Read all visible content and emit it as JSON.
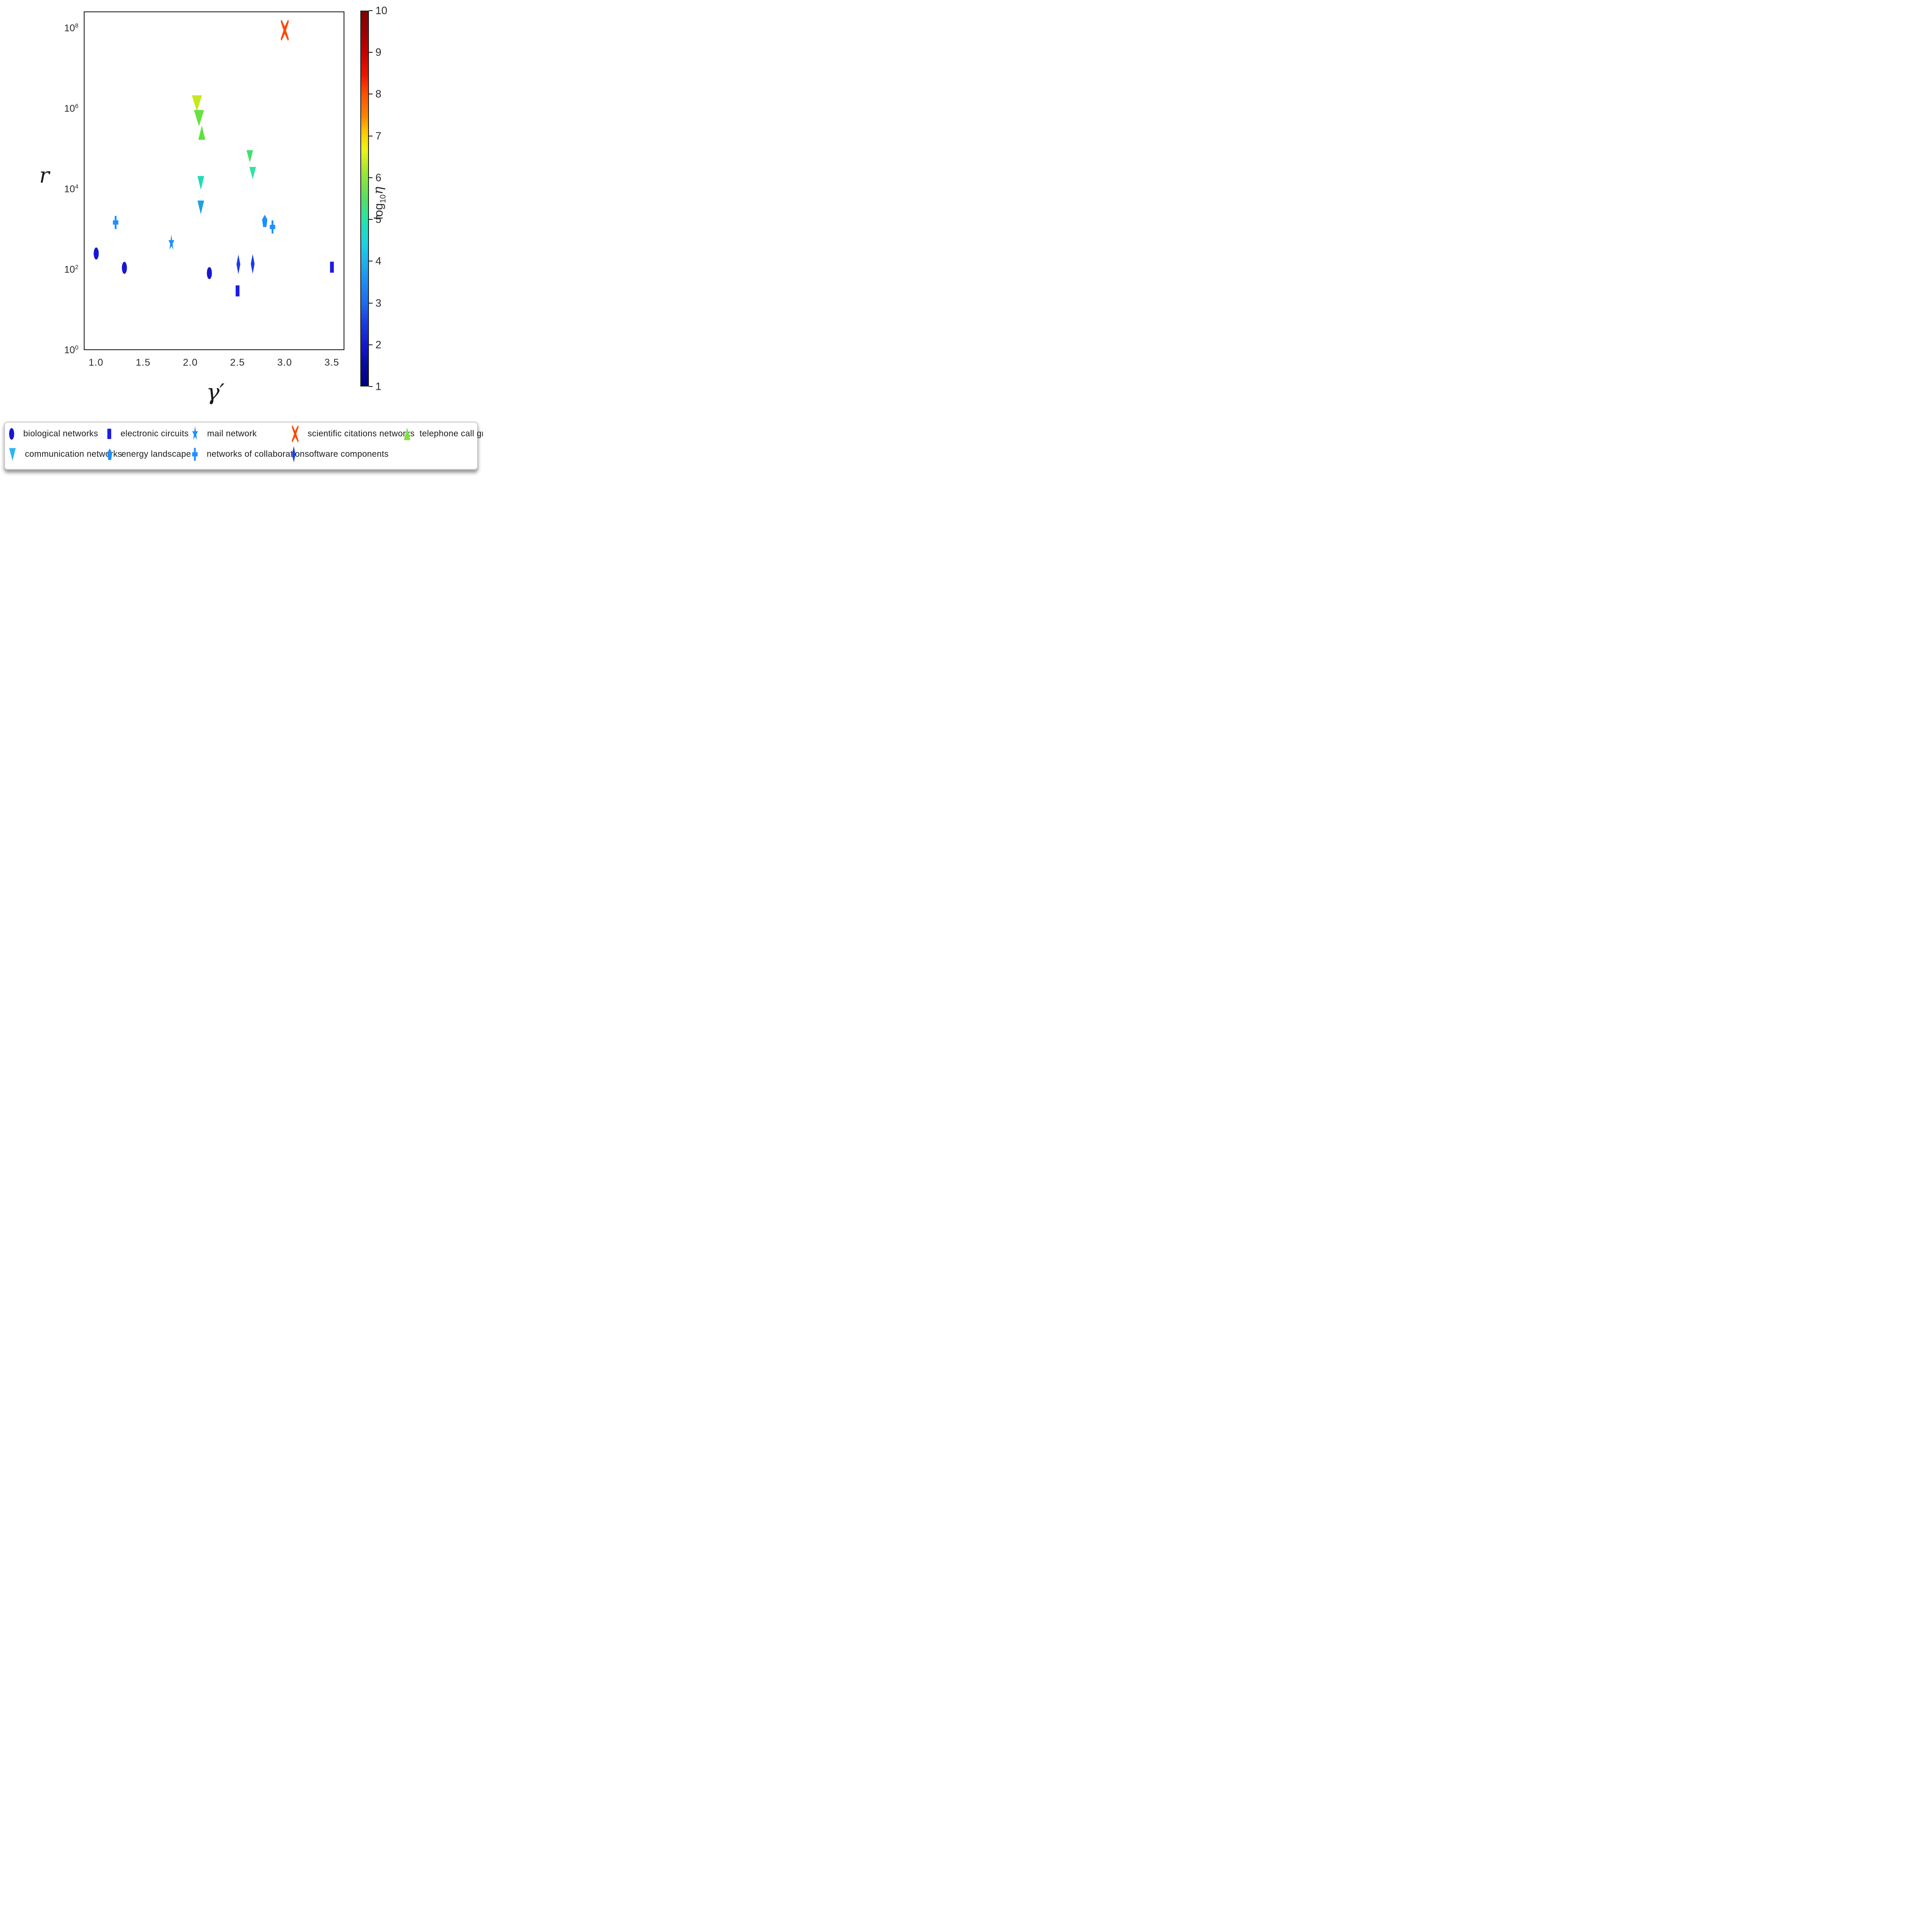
{
  "figure": {
    "background": "#ffffff"
  },
  "axes": {
    "xlabel": "γ′",
    "ylabel": "r",
    "x_ticks": [
      "1.0",
      "1.5",
      "2.0",
      "2.5",
      "3.0",
      "3.5"
    ],
    "y_tick_base": "10",
    "y_tick_exponents": [
      8,
      6,
      4,
      2,
      0
    ]
  },
  "colorbar": {
    "label_prefix": "log",
    "label_sub": "10",
    "label_symbol": "η",
    "ticks": [
      10,
      9,
      8,
      7,
      6,
      5,
      4,
      3,
      2,
      1
    ],
    "top_color": "#7f0000",
    "bottom_color": "#00007f"
  },
  "chart_data": {
    "type": "scatter",
    "xlabel": "γ′",
    "ylabel": "r",
    "x_range": [
      0.87,
      3.63
    ],
    "y_scale": "log",
    "y_range_exponents": [
      0,
      8.4
    ],
    "grid": false,
    "colorbar_label": "log10 η",
    "colorbar_range": [
      1,
      10
    ],
    "series": [
      {
        "name": "biological networks",
        "marker": "circle",
        "color": "#1717d2",
        "log10_eta": 2,
        "w": 13,
        "h": 31,
        "points": [
          {
            "x": 1.0,
            "y": 250
          },
          {
            "x": 1.3,
            "y": 110
          },
          {
            "x": 2.2,
            "y": 82
          }
        ]
      },
      {
        "name": "electronic circuits",
        "marker": "square",
        "color": "#1c1ce4",
        "log10_eta": 2,
        "w": 11,
        "h": 30,
        "points": [
          {
            "x": 2.5,
            "y": 30
          },
          {
            "x": 3.5,
            "y": 115
          }
        ]
      },
      {
        "name": "mail network",
        "marker": "star",
        "color": "#1e90ff",
        "log10_eta": 3,
        "w": 15,
        "h": 44,
        "points": [
          {
            "x": 1.8,
            "y": 460
          }
        ]
      },
      {
        "name": "scientific citations networks",
        "marker": "xmark",
        "color": "#fd4800",
        "log10_eta": 8.5,
        "w": 20,
        "h": 52,
        "points": [
          {
            "x": 3.0,
            "y": 90000000
          }
        ]
      },
      {
        "name": "telephone call graph",
        "marker": "triangle-up",
        "color": "#5ce23c",
        "log10_eta": 5.8,
        "w": 18,
        "h": 38,
        "points": [
          {
            "x": 2.12,
            "y": 250000
          }
        ]
      },
      {
        "name": "communication networks",
        "marker": "triangle-down",
        "color": "#22aaee",
        "w": 17,
        "h": 37,
        "points": [
          {
            "x": 2.07,
            "y": 1350000,
            "color": "#c6e81e",
            "log10_eta": 6.6,
            "w": 26,
            "h": 44
          },
          {
            "x": 2.09,
            "y": 580000,
            "color": "#68e240",
            "log10_eta": 5.9,
            "w": 26,
            "h": 44
          },
          {
            "x": 2.11,
            "y": 14500,
            "color": "#1edcb8",
            "log10_eta": 4.6,
            "w": 17,
            "h": 37
          },
          {
            "x": 2.11,
            "y": 3500,
            "color": "#1f9fe6",
            "log10_eta": 3.6,
            "w": 17,
            "h": 37
          },
          {
            "x": 2.63,
            "y": 65000,
            "color": "#42df6e",
            "log10_eta": 5.5,
            "w": 17,
            "h": 33
          },
          {
            "x": 2.66,
            "y": 25000,
            "color": "#2ee49c",
            "log10_eta": 5.0,
            "w": 17,
            "h": 33
          }
        ]
      },
      {
        "name": "energy landscape",
        "marker": "pentagon",
        "color": "#1e90ff",
        "log10_eta": 3.2,
        "w": 14,
        "h": 32,
        "points": [
          {
            "x": 2.79,
            "y": 1600
          }
        ]
      },
      {
        "name": "networks of collaboration",
        "marker": "plus",
        "color": "#1e90ff",
        "log10_eta": 3.1,
        "w": 14,
        "h": 35,
        "points": [
          {
            "x": 1.21,
            "y": 1500
          },
          {
            "x": 2.87,
            "y": 1150
          }
        ]
      },
      {
        "name": "software components",
        "marker": "diamond",
        "color": "#1c3ce8",
        "log10_eta": 2.2,
        "w": 11,
        "h": 48,
        "points": [
          {
            "x": 2.51,
            "y": 135
          },
          {
            "x": 2.66,
            "y": 140
          }
        ]
      }
    ]
  },
  "legend": {
    "entries": [
      {
        "marker": "circle",
        "color": "#1717d2",
        "label": "biological networks"
      },
      {
        "marker": "square",
        "color": "#1c1ce4",
        "label": "electronic circuits"
      },
      {
        "marker": "star",
        "color": "#1e90ff",
        "label": "mail network"
      },
      {
        "marker": "xmark",
        "color": "#fd4800",
        "label": "scientific citations networks"
      },
      {
        "marker": "triangle-up",
        "color": "#7de43e",
        "label": "telephone call graph"
      },
      {
        "marker": "triangle-down",
        "color": "#29b7f0",
        "label": "communication networks"
      },
      {
        "marker": "pentagon",
        "color": "#1e90ff",
        "label": "energy landscape"
      },
      {
        "marker": "plus",
        "color": "#1e90ff",
        "label": "networks of collaboration"
      },
      {
        "marker": "diamond",
        "color": "#1c3ce8",
        "label": "software components"
      }
    ]
  }
}
